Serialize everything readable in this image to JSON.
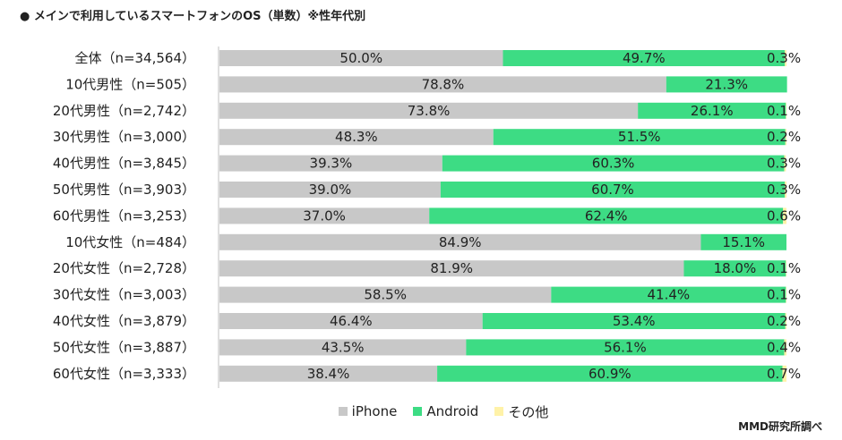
{
  "chart_data": {
    "type": "bar",
    "orientation": "horizontal",
    "stacked": true,
    "normalized": true,
    "title": "● メインで利用しているスマートフォンのOS（単数）※性年代別",
    "categories": [
      "全体（n=34,564）",
      "10代男性（n=505）",
      "20代男性（n=2,742）",
      "30代男性（n=3,000）",
      "40代男性（n=3,845）",
      "50代男性（n=3,903）",
      "60代男性（n=3,253）",
      "10代女性（n=484）",
      "20代女性（n=2,728）",
      "30代女性（n=3,003）",
      "40代女性（n=3,879）",
      "50代女性（n=3,887）",
      "60代女性（n=3,333）"
    ],
    "series": [
      {
        "name": "iPhone",
        "color": "#c8c8c8",
        "values": [
          50.0,
          78.8,
          73.8,
          48.3,
          39.3,
          39.0,
          37.0,
          84.9,
          81.9,
          58.5,
          46.4,
          43.5,
          38.4
        ],
        "labels": [
          "50.0%",
          "78.8%",
          "73.8%",
          "48.3%",
          "39.3%",
          "39.0%",
          "37.0%",
          "84.9%",
          "81.9%",
          "58.5%",
          "46.4%",
          "43.5%",
          "38.4%"
        ]
      },
      {
        "name": "Android",
        "color": "#3ddc84",
        "values": [
          49.7,
          21.3,
          26.1,
          51.5,
          60.3,
          60.7,
          62.4,
          15.1,
          18.0,
          41.4,
          53.4,
          56.1,
          60.9
        ],
        "labels": [
          "49.7%",
          "21.3%",
          "26.1%",
          "51.5%",
          "60.3%",
          "60.7%",
          "62.4%",
          "15.1%",
          "18.0%",
          "41.4%",
          "53.4%",
          "56.1%",
          "60.9%"
        ]
      },
      {
        "name": "その他",
        "color": "#fff2a8",
        "values": [
          0.3,
          0.0,
          0.1,
          0.2,
          0.3,
          0.3,
          0.6,
          0.0,
          0.1,
          0.1,
          0.2,
          0.4,
          0.7
        ],
        "labels": [
          "0.3%",
          "",
          "0.1%",
          "0.2%",
          "0.3%",
          "0.3%",
          "0.6%",
          "",
          "0.1%",
          "0.1%",
          "0.2%",
          "0.4%",
          "0.7%"
        ]
      }
    ],
    "xlim": [
      0,
      100
    ],
    "grid": false,
    "legend_position": "bottom"
  },
  "source": "MMD研究所調べ"
}
